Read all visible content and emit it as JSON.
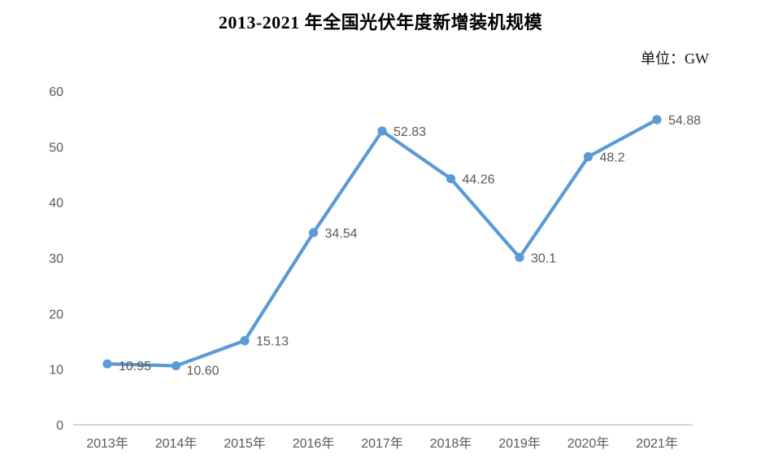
{
  "chart_data": {
    "type": "line",
    "title": "2013-2021 年全国光伏年度新增装机规模",
    "unit": "单位：GW",
    "categories": [
      "2013年",
      "2014年",
      "2015年",
      "2016年",
      "2017年",
      "2018年",
      "2019年",
      "2020年",
      "2021年"
    ],
    "values": [
      10.95,
      10.6,
      15.13,
      34.54,
      52.83,
      44.26,
      30.1,
      48.2,
      54.88
    ],
    "point_labels": [
      "10.95",
      "10.60",
      "15.13",
      "34.54",
      "52.83",
      "44.26",
      "30.1",
      "48.2",
      "54.88"
    ],
    "y_ticks": [
      0,
      10,
      20,
      30,
      40,
      50,
      60
    ],
    "ylim": [
      0,
      60
    ],
    "xlabel": "",
    "ylabel": "",
    "grid": false,
    "legend": null,
    "line_color": "#5B9BD5",
    "marker_color": "#5B9BD5",
    "axis_line_color": "#c9c9c9",
    "tick_label_color": "#595959",
    "data_label_color": "#595959"
  }
}
